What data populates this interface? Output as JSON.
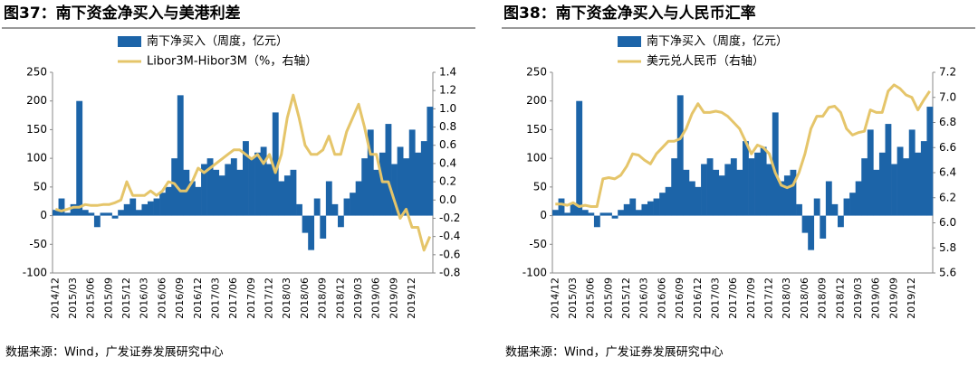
{
  "chart_data": [
    {
      "type": "combo",
      "title": "图37：南下资金净买入与美港利差",
      "source": "数据来源：Wind，广发证券发展研究中心",
      "x": [
        "2014/12",
        "2015/01",
        "2015/02",
        "2015/03",
        "2015/04",
        "2015/05",
        "2015/06",
        "2015/07",
        "2015/08",
        "2015/09",
        "2015/10",
        "2015/11",
        "2015/12",
        "2016/01",
        "2016/02",
        "2016/03",
        "2016/04",
        "2016/05",
        "2016/06",
        "2016/07",
        "2016/08",
        "2016/09",
        "2016/10",
        "2016/11",
        "2016/12",
        "2017/01",
        "2017/02",
        "2017/03",
        "2017/04",
        "2017/05",
        "2017/06",
        "2017/07",
        "2017/08",
        "2017/09",
        "2017/10",
        "2017/11",
        "2017/12",
        "2018/01",
        "2018/02",
        "2018/03",
        "2018/04",
        "2018/05",
        "2018/06",
        "2018/07",
        "2018/08",
        "2018/09",
        "2018/10",
        "2018/11",
        "2018/12",
        "2019/01",
        "2019/02",
        "2019/03",
        "2019/04",
        "2019/05",
        "2019/06",
        "2019/07",
        "2019/08",
        "2019/09",
        "2019/10",
        "2019/11",
        "2019/12",
        "2020/01",
        "2020/02",
        "2020/03"
      ],
      "series": [
        {
          "name": "南下净买入（周度，亿元）",
          "color": "#1c64a8",
          "kind": "bar",
          "values": [
            10,
            30,
            5,
            20,
            200,
            10,
            5,
            -20,
            5,
            5,
            -5,
            10,
            20,
            30,
            10,
            20,
            25,
            30,
            40,
            50,
            100,
            210,
            80,
            60,
            50,
            90,
            100,
            80,
            70,
            90,
            100,
            80,
            130,
            100,
            110,
            120,
            90,
            180,
            60,
            70,
            80,
            20,
            -30,
            -60,
            30,
            -40,
            60,
            20,
            -20,
            30,
            40,
            60,
            100,
            150,
            80,
            110,
            160,
            90,
            120,
            100,
            150,
            110,
            130,
            190
          ]
        },
        {
          "name": "Libor3M-Hibor3M（%，右轴）",
          "color": "#e5c56a",
          "kind": "line",
          "axis": "y2",
          "values": [
            -0.1,
            -0.12,
            -0.1,
            -0.08,
            -0.08,
            -0.05,
            -0.06,
            -0.06,
            -0.05,
            -0.05,
            -0.03,
            0.0,
            0.2,
            0.05,
            0.05,
            0.05,
            0.1,
            0.05,
            0.1,
            0.2,
            0.18,
            0.1,
            0.1,
            0.2,
            0.35,
            0.3,
            0.35,
            0.4,
            0.45,
            0.5,
            0.55,
            0.55,
            0.5,
            0.45,
            0.5,
            0.4,
            0.5,
            0.3,
            0.5,
            0.9,
            1.15,
            0.9,
            0.6,
            0.5,
            0.5,
            0.55,
            0.7,
            0.5,
            0.5,
            0.75,
            0.9,
            1.05,
            0.8,
            0.5,
            0.5,
            0.2,
            0.2,
            0.0,
            -0.2,
            -0.1,
            -0.3,
            -0.3,
            -0.55,
            -0.4
          ]
        }
      ],
      "ylim": [
        -100,
        250
      ],
      "yticks": [
        -100,
        -50,
        0,
        50,
        100,
        150,
        200,
        250
      ],
      "y2lim": [
        -0.8,
        1.4
      ],
      "y2ticks": [
        -0.8,
        -0.6,
        -0.4,
        -0.2,
        {
          "value": 0,
          "label": "0.0"
        },
        0.2,
        0.4,
        0.6,
        0.8,
        {
          "value": 1,
          "label": "1.0"
        },
        1.2,
        1.4
      ]
    },
    {
      "type": "combo",
      "title": "图38：南下资金净买入与人民币汇率",
      "source": "数据来源：Wind，广发证券发展研究中心",
      "x": [
        "2014/12",
        "2015/01",
        "2015/02",
        "2015/03",
        "2015/04",
        "2015/05",
        "2015/06",
        "2015/07",
        "2015/08",
        "2015/09",
        "2015/10",
        "2015/11",
        "2015/12",
        "2016/01",
        "2016/02",
        "2016/03",
        "2016/04",
        "2016/05",
        "2016/06",
        "2016/07",
        "2016/08",
        "2016/09",
        "2016/10",
        "2016/11",
        "2016/12",
        "2017/01",
        "2017/02",
        "2017/03",
        "2017/04",
        "2017/05",
        "2017/06",
        "2017/07",
        "2017/08",
        "2017/09",
        "2017/10",
        "2017/11",
        "2017/12",
        "2018/01",
        "2018/02",
        "2018/03",
        "2018/04",
        "2018/05",
        "2018/06",
        "2018/07",
        "2018/08",
        "2018/09",
        "2018/10",
        "2018/11",
        "2018/12",
        "2019/01",
        "2019/02",
        "2019/03",
        "2019/04",
        "2019/05",
        "2019/06",
        "2019/07",
        "2019/08",
        "2019/09",
        "2019/10",
        "2019/11",
        "2019/12",
        "2020/01",
        "2020/02",
        "2020/03"
      ],
      "series": [
        {
          "name": "南下净买入（周度，亿元）",
          "color": "#1c64a8",
          "kind": "bar",
          "values": [
            10,
            30,
            5,
            20,
            200,
            10,
            5,
            -20,
            5,
            5,
            -5,
            10,
            20,
            30,
            10,
            20,
            25,
            30,
            40,
            50,
            100,
            210,
            80,
            60,
            50,
            90,
            100,
            80,
            70,
            90,
            100,
            80,
            130,
            100,
            110,
            120,
            90,
            180,
            60,
            70,
            80,
            20,
            -30,
            -60,
            30,
            -40,
            60,
            20,
            -20,
            30,
            40,
            60,
            100,
            150,
            80,
            110,
            160,
            90,
            120,
            100,
            150,
            110,
            130,
            190
          ]
        },
        {
          "name": "美元兑人民币（右轴）",
          "color": "#e5c56a",
          "kind": "line",
          "axis": "y2",
          "values": [
            6.15,
            6.15,
            6.14,
            6.16,
            6.13,
            6.14,
            6.13,
            6.13,
            6.35,
            6.36,
            6.35,
            6.38,
            6.45,
            6.55,
            6.54,
            6.5,
            6.47,
            6.55,
            6.6,
            6.65,
            6.65,
            6.67,
            6.75,
            6.87,
            6.95,
            6.88,
            6.88,
            6.89,
            6.88,
            6.85,
            6.8,
            6.75,
            6.65,
            6.55,
            6.62,
            6.6,
            6.55,
            6.4,
            6.3,
            6.28,
            6.3,
            6.4,
            6.55,
            6.75,
            6.85,
            6.85,
            6.92,
            6.93,
            6.88,
            6.75,
            6.7,
            6.72,
            6.73,
            6.9,
            6.88,
            6.88,
            7.05,
            7.1,
            7.07,
            7.02,
            7.0,
            6.9,
            6.98,
            7.05
          ]
        }
      ],
      "ylim": [
        -100,
        250
      ],
      "yticks": [
        -100,
        -50,
        0,
        50,
        100,
        150,
        200,
        250
      ],
      "y2lim": [
        5.6,
        7.2
      ],
      "y2ticks": [
        5.6,
        5.8,
        {
          "value": 6,
          "label": "6.0"
        },
        6.2,
        6.4,
        6.6,
        6.8,
        {
          "value": 7,
          "label": "7.0"
        },
        7.2
      ]
    }
  ]
}
